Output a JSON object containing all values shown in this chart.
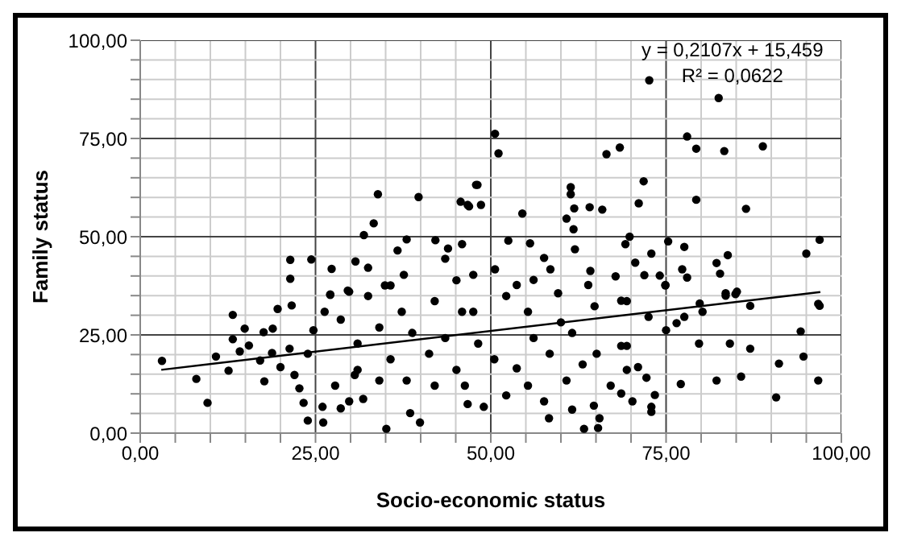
{
  "chart_data": {
    "type": "scatter",
    "xlabel": "Socio-economic status",
    "ylabel": "Family status",
    "annotations": [
      "y = 0,2107x + 15,459",
      "R² = 0,0622"
    ],
    "xlim": [
      0,
      100
    ],
    "ylim": [
      0,
      100
    ],
    "xticks": [
      {
        "value": 0,
        "label": "0,00"
      },
      {
        "value": 5,
        "label": null
      },
      {
        "value": 10,
        "label": null
      },
      {
        "value": 15,
        "label": null
      },
      {
        "value": 20,
        "label": null
      },
      {
        "value": 25,
        "label": "25,00"
      },
      {
        "value": 30,
        "label": null
      },
      {
        "value": 35,
        "label": null
      },
      {
        "value": 40,
        "label": null
      },
      {
        "value": 45,
        "label": null
      },
      {
        "value": 50,
        "label": "50,00"
      },
      {
        "value": 55,
        "label": null
      },
      {
        "value": 60,
        "label": null
      },
      {
        "value": 65,
        "label": null
      },
      {
        "value": 70,
        "label": null
      },
      {
        "value": 75,
        "label": "75,00"
      },
      {
        "value": 80,
        "label": null
      },
      {
        "value": 85,
        "label": null
      },
      {
        "value": 90,
        "label": null
      },
      {
        "value": 95,
        "label": null
      },
      {
        "value": 100,
        "label": "100,00"
      }
    ],
    "yticks": [
      {
        "value": 0,
        "label": "0,00"
      },
      {
        "value": 5,
        "label": null
      },
      {
        "value": 10,
        "label": null
      },
      {
        "value": 15,
        "label": null
      },
      {
        "value": 20,
        "label": null
      },
      {
        "value": 25,
        "label": "25,00"
      },
      {
        "value": 30,
        "label": null
      },
      {
        "value": 35,
        "label": null
      },
      {
        "value": 40,
        "label": null
      },
      {
        "value": 45,
        "label": null
      },
      {
        "value": 50,
        "label": "50,00"
      },
      {
        "value": 55,
        "label": null
      },
      {
        "value": 60,
        "label": null
      },
      {
        "value": 65,
        "label": null
      },
      {
        "value": 70,
        "label": null
      },
      {
        "value": 75,
        "label": "75,00"
      },
      {
        "value": 80,
        "label": null
      },
      {
        "value": 85,
        "label": null
      },
      {
        "value": 90,
        "label": null
      },
      {
        "value": 95,
        "label": null
      },
      {
        "value": 100,
        "label": "100,00"
      }
    ],
    "grid": true,
    "legend": false,
    "marker": "circle",
    "series": [
      {
        "color": "#000000",
        "x": [
          21.4,
          21.4,
          24.4,
          33.9,
          33.3,
          31.9,
          39.7,
          27.3,
          30.7,
          32.5,
          36.7,
          38.0,
          42.1,
          45.7,
          46.9,
          47.9,
          43.9,
          43.5,
          45.9,
          37.6,
          27.1,
          29.8,
          34.9,
          45.1,
          72.6,
          82.5,
          50.6,
          51.1,
          66.5,
          68.4,
          78.0,
          79.3,
          83.3,
          88.8,
          48.1,
          46.7,
          48.6,
          54.5,
          61.4,
          61.4,
          61.9,
          64.1,
          65.9,
          60.8,
          61.8,
          71.8,
          71.1,
          79.3,
          86.4,
          62.0,
          55.6,
          52.5,
          69.8,
          69.2,
          75.3,
          77.6,
          72.9,
          96.9,
          95.0,
          83.8,
          82.2,
          82.7,
          77.3,
          78.0,
          70.6,
          71.9,
          74.1,
          74.9,
          64.2,
          67.8,
          58.5,
          57.6,
          83.5,
          84.9,
          79.8,
          87.0,
          96.9,
          47.5,
          50.6,
          53.7,
          56.1,
          59.6,
          63.9,
          68.6,
          3.1,
          8.0,
          9.6,
          10.8,
          12.6,
          13.2,
          13.2,
          14.2,
          14.9,
          15.5,
          17.1,
          17.6,
          17.7,
          18.9,
          18.8,
          19.6,
          21.3,
          21.6,
          20.0,
          22.0,
          22.7,
          23.3,
          23.9,
          26.1,
          26.0,
          28.6,
          27.8,
          29.8,
          30.6,
          31.8,
          35.1,
          38.5,
          39.9,
          24.7,
          23.9,
          27.1,
          29.6,
          31.0,
          28.6,
          34.1,
          37.3,
          35.7,
          34.1,
          38.0,
          41.2,
          42.0,
          43.5,
          45.9,
          45.1,
          46.7,
          42.0,
          38.8,
          32.5,
          35.7,
          26.3,
          31.0,
          58.3,
          63.3,
          65.3,
          65.5,
          61.6,
          64.7,
          72.9,
          72.9,
          73.4,
          70.2,
          68.6,
          67.1,
          69.4,
          71.0,
          72.2,
          68.6,
          69.4,
          65.1,
          63.1,
          77.1,
          82.2,
          85.7,
          79.7,
          84.1,
          87.0,
          91.1,
          90.7,
          94.6,
          96.7,
          94.2,
          96.7,
          75.0,
          76.5,
          77.6,
          80.2,
          83.5,
          85.1,
          74.9,
          72.5,
          69.4,
          64.8,
          60.0,
          55.3,
          52.2,
          47.5,
          48.2,
          49.0,
          52.2,
          55.3,
          57.6,
          53.7,
          58.4,
          60.8,
          56.1,
          61.6,
          50.5,
          46.3
        ],
        "values": [
          44.1,
          39.3,
          44.2,
          60.8,
          53.4,
          50.4,
          60.1,
          41.8,
          43.7,
          42.1,
          46.5,
          49.3,
          49.1,
          58.9,
          57.7,
          63.2,
          47.0,
          44.4,
          48.1,
          40.3,
          35.3,
          36.0,
          37.6,
          38.9,
          89.8,
          85.3,
          76.2,
          71.2,
          71.0,
          72.7,
          75.5,
          72.4,
          71.8,
          73.0,
          63.2,
          58.1,
          58.1,
          55.9,
          62.6,
          60.8,
          57.2,
          57.5,
          56.9,
          54.6,
          51.9,
          64.1,
          58.5,
          59.4,
          57.1,
          46.8,
          48.3,
          49.0,
          50.0,
          48.1,
          48.8,
          47.4,
          45.7,
          49.2,
          45.7,
          45.3,
          43.3,
          40.6,
          41.7,
          39.6,
          43.4,
          40.2,
          40.1,
          37.7,
          41.3,
          39.9,
          41.7,
          44.6,
          35.0,
          35.4,
          33.0,
          32.4,
          32.4,
          40.3,
          41.7,
          37.7,
          39.0,
          35.6,
          37.7,
          33.7,
          18.4,
          13.8,
          7.7,
          19.5,
          15.9,
          30.1,
          23.9,
          20.8,
          26.6,
          22.3,
          18.5,
          25.7,
          13.2,
          26.6,
          20.4,
          31.6,
          21.5,
          32.5,
          16.8,
          14.8,
          11.4,
          7.7,
          3.2,
          2.7,
          6.7,
          6.3,
          12.1,
          8.1,
          14.8,
          8.7,
          1.1,
          5.1,
          2.7,
          26.2,
          20.2,
          35.2,
          36.3,
          22.8,
          28.9,
          26.9,
          30.9,
          18.8,
          13.4,
          13.4,
          20.2,
          12.1,
          24.2,
          30.9,
          16.1,
          7.4,
          33.6,
          25.5,
          34.9,
          37.6,
          30.9,
          16.1,
          3.8,
          1.1,
          1.3,
          3.8,
          6.0,
          7.0,
          5.4,
          6.7,
          9.7,
          8.1,
          10.1,
          12.1,
          16.1,
          16.8,
          14.1,
          22.2,
          22.2,
          20.2,
          17.5,
          12.5,
          13.4,
          14.4,
          22.8,
          22.8,
          21.5,
          17.7,
          9.1,
          19.5,
          13.4,
          25.9,
          32.9,
          26.2,
          28.0,
          29.6,
          30.9,
          35.6,
          36.0,
          37.6,
          29.6,
          33.6,
          32.3,
          28.2,
          30.9,
          34.9,
          30.9,
          22.8,
          6.7,
          9.6,
          12.1,
          8.1,
          16.5,
          20.2,
          13.4,
          24.2,
          25.5,
          18.8,
          12.1
        ]
      },
      {
        "type": "line",
        "color": "#000000",
        "marker": "none",
        "x": [
          3,
          97
        ],
        "values": [
          16.1,
          35.9
        ]
      }
    ]
  }
}
